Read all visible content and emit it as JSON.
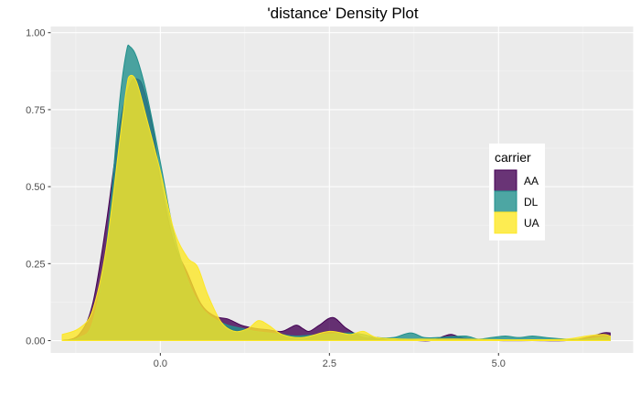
{
  "chart_data": {
    "type": "area",
    "title": "'distance' Density Plot",
    "xlabel": "",
    "ylabel": "",
    "xlim": [
      -1.62,
      6.99
    ],
    "ylim": [
      -0.04,
      1.02
    ],
    "x_ticks": [
      0.0,
      2.5,
      5.0
    ],
    "x_tick_labels": [
      "0.0",
      "2.5",
      "5.0"
    ],
    "y_ticks": [
      0.0,
      0.25,
      0.5,
      0.75,
      1.0
    ],
    "y_tick_labels": [
      "0.00",
      "0.25",
      "0.50",
      "0.75",
      "1.00"
    ],
    "grid": true,
    "legend": {
      "title": "carrier",
      "placement": "right"
    },
    "series": [
      {
        "name": "AA",
        "color": "#440154",
        "points": [
          [
            -1.45,
            0.0
          ],
          [
            -1.2,
            0.02
          ],
          [
            -1.0,
            0.12
          ],
          [
            -0.8,
            0.38
          ],
          [
            -0.6,
            0.7
          ],
          [
            -0.45,
            0.83
          ],
          [
            -0.35,
            0.85
          ],
          [
            -0.25,
            0.82
          ],
          [
            -0.1,
            0.68
          ],
          [
            0.0,
            0.52
          ],
          [
            0.2,
            0.32
          ],
          [
            0.4,
            0.22
          ],
          [
            0.6,
            0.12
          ],
          [
            0.8,
            0.08
          ],
          [
            1.0,
            0.07
          ],
          [
            1.2,
            0.05
          ],
          [
            1.4,
            0.04
          ],
          [
            1.6,
            0.035
          ],
          [
            1.8,
            0.03
          ],
          [
            2.0,
            0.05
          ],
          [
            2.1,
            0.04
          ],
          [
            2.2,
            0.03
          ],
          [
            2.35,
            0.05
          ],
          [
            2.55,
            0.075
          ],
          [
            2.75,
            0.04
          ],
          [
            3.0,
            0.01
          ],
          [
            3.2,
            0.01
          ],
          [
            3.4,
            0.0
          ],
          [
            3.6,
            0.005
          ],
          [
            3.8,
            0.0
          ],
          [
            4.0,
            0.0
          ],
          [
            4.2,
            0.015
          ],
          [
            4.3,
            0.02
          ],
          [
            4.45,
            0.01
          ],
          [
            4.6,
            0.005
          ],
          [
            5.0,
            0.0
          ],
          [
            5.5,
            0.0
          ],
          [
            6.0,
            0.0
          ],
          [
            6.3,
            0.01
          ],
          [
            6.55,
            0.025
          ],
          [
            6.65,
            0.025
          ]
        ]
      },
      {
        "name": "DL",
        "color": "#21908C",
        "points": [
          [
            -1.45,
            0.0
          ],
          [
            -1.2,
            0.01
          ],
          [
            -1.0,
            0.06
          ],
          [
            -0.8,
            0.3
          ],
          [
            -0.6,
            0.78
          ],
          [
            -0.5,
            0.94
          ],
          [
            -0.45,
            0.955
          ],
          [
            -0.35,
            0.92
          ],
          [
            -0.2,
            0.8
          ],
          [
            0.0,
            0.58
          ],
          [
            0.2,
            0.35
          ],
          [
            0.4,
            0.2
          ],
          [
            0.6,
            0.11
          ],
          [
            0.8,
            0.07
          ],
          [
            1.0,
            0.05
          ],
          [
            1.2,
            0.04
          ],
          [
            1.4,
            0.03
          ],
          [
            1.6,
            0.025
          ],
          [
            1.8,
            0.02
          ],
          [
            2.0,
            0.015
          ],
          [
            2.4,
            0.02
          ],
          [
            2.8,
            0.025
          ],
          [
            3.0,
            0.02
          ],
          [
            3.2,
            0.01
          ],
          [
            3.45,
            0.01
          ],
          [
            3.7,
            0.025
          ],
          [
            3.9,
            0.01
          ],
          [
            4.1,
            0.01
          ],
          [
            4.5,
            0.015
          ],
          [
            4.7,
            0.005
          ],
          [
            4.9,
            0.01
          ],
          [
            5.1,
            0.015
          ],
          [
            5.3,
            0.01
          ],
          [
            5.5,
            0.015
          ],
          [
            5.7,
            0.01
          ],
          [
            6.0,
            0.005
          ],
          [
            6.3,
            0.005
          ],
          [
            6.55,
            0.01
          ],
          [
            6.65,
            0.01
          ]
        ]
      },
      {
        "name": "UA",
        "color": "#FDE725",
        "points": [
          [
            -1.45,
            0.02
          ],
          [
            -1.2,
            0.04
          ],
          [
            -1.0,
            0.1
          ],
          [
            -0.8,
            0.3
          ],
          [
            -0.6,
            0.65
          ],
          [
            -0.5,
            0.82
          ],
          [
            -0.45,
            0.86
          ],
          [
            -0.35,
            0.84
          ],
          [
            -0.2,
            0.72
          ],
          [
            0.0,
            0.55
          ],
          [
            0.2,
            0.36
          ],
          [
            0.4,
            0.27
          ],
          [
            0.55,
            0.24
          ],
          [
            0.7,
            0.15
          ],
          [
            0.9,
            0.06
          ],
          [
            1.1,
            0.03
          ],
          [
            1.3,
            0.04
          ],
          [
            1.45,
            0.065
          ],
          [
            1.6,
            0.05
          ],
          [
            1.8,
            0.02
          ],
          [
            2.1,
            0.01
          ],
          [
            2.5,
            0.03
          ],
          [
            2.8,
            0.02
          ],
          [
            3.0,
            0.03
          ],
          [
            3.2,
            0.01
          ],
          [
            3.6,
            0.005
          ],
          [
            4.0,
            0.005
          ],
          [
            4.5,
            0.005
          ],
          [
            5.0,
            0.003
          ],
          [
            5.5,
            0.003
          ],
          [
            6.0,
            0.005
          ],
          [
            6.3,
            0.015
          ],
          [
            6.55,
            0.02
          ],
          [
            6.65,
            0.015
          ]
        ]
      }
    ]
  }
}
